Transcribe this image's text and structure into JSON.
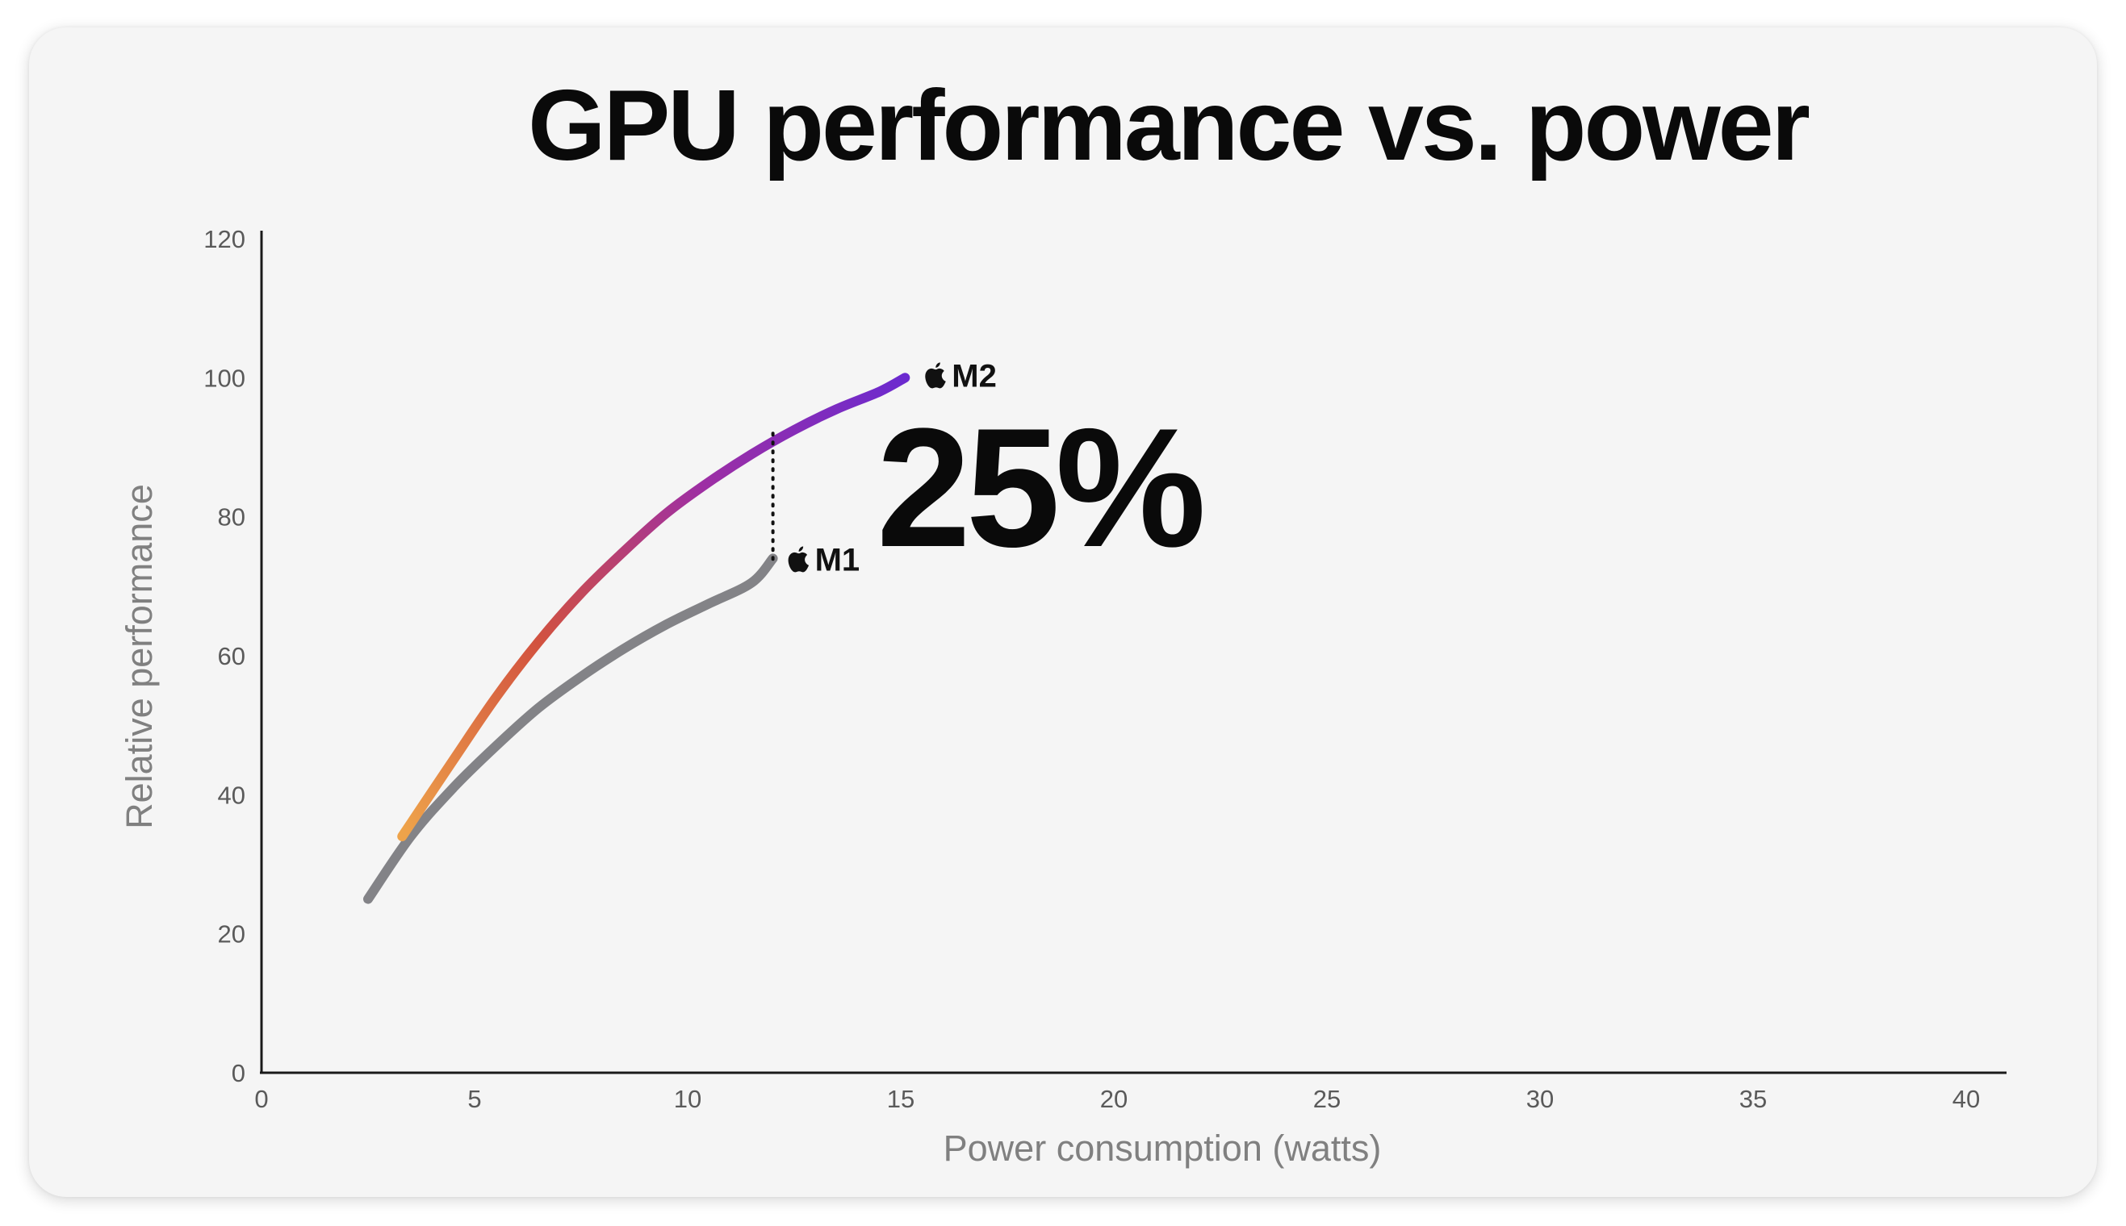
{
  "chart_data": {
    "type": "line",
    "title": "GPU performance vs. power",
    "xlabel": "Power consumption (watts)",
    "ylabel": "Relative performance",
    "xlim": [
      0,
      40
    ],
    "ylim": [
      0,
      120
    ],
    "xticks": [
      "0",
      "5",
      "10",
      "15",
      "20",
      "25",
      "30",
      "35",
      "40"
    ],
    "yticks": [
      "0",
      "20",
      "40",
      "60",
      "80",
      "100",
      "120"
    ],
    "grid": false,
    "legend": "none",
    "series": [
      {
        "name": "M1",
        "color": "#838387",
        "x": [
          2.5,
          3.5,
          4.5,
          5.5,
          6.5,
          7.5,
          8.5,
          9.5,
          10.5,
          11.5,
          12
        ],
        "y": [
          25,
          34,
          41,
          47,
          52.5,
          57,
          61,
          64.5,
          67.5,
          70.5,
          74
        ]
      },
      {
        "name": "M2",
        "gradient": [
          "#eea34a",
          "#d2523f",
          "#9e2fa3",
          "#6a2ad0"
        ],
        "x": [
          3.3,
          4.5,
          5.5,
          6.5,
          7.5,
          8.5,
          9.5,
          10.5,
          11.5,
          12.5,
          13.5,
          14.5,
          15.1
        ],
        "y": [
          34,
          45,
          54,
          62,
          69,
          75,
          80.5,
          85,
          89,
          92.5,
          95.5,
          98,
          100
        ]
      }
    ],
    "annotations": [
      {
        "text": "25%",
        "x": 12,
        "y_from": 74,
        "y_to": 92
      }
    ]
  }
}
